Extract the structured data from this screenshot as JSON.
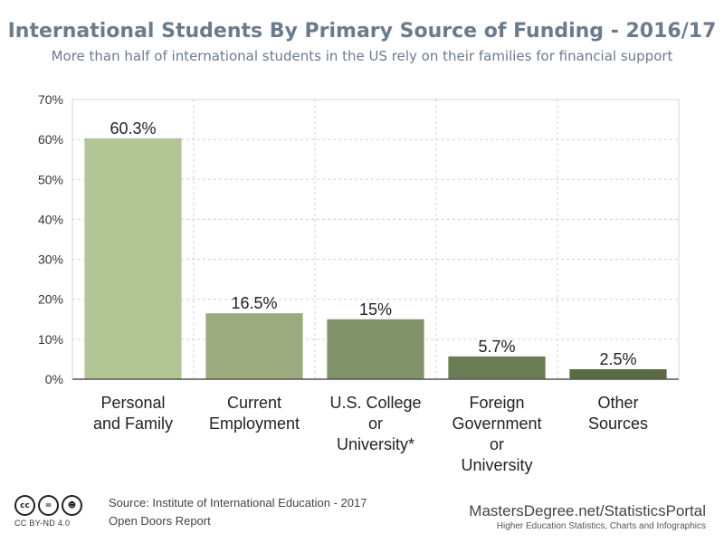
{
  "chart_data": {
    "type": "bar",
    "title": "International Students By Primary Source of Funding - 2016/17",
    "subtitle": "More than half of international students in the US rely on their families for financial support",
    "categories": [
      [
        "Personal",
        "and Family"
      ],
      [
        "Current",
        "Employment"
      ],
      [
        "U.S. College",
        "or",
        "University*"
      ],
      [
        "Foreign",
        "Government",
        "or",
        "University"
      ],
      [
        "Other",
        "Sources"
      ]
    ],
    "values": [
      60.3,
      16.5,
      15,
      5.7,
      2.5
    ],
    "value_labels": [
      "60.3%",
      "16.5%",
      "15%",
      "5.7%",
      "2.5%"
    ],
    "bar_colors": [
      "#b3c495",
      "#9bab7f",
      "#82926a",
      "#6b7b55",
      "#5a6a45"
    ],
    "ylim": [
      0,
      70
    ],
    "yticks": [
      0,
      10,
      20,
      30,
      40,
      50,
      60,
      70
    ],
    "ytick_labels": [
      "0%",
      "10%",
      "20%",
      "30%",
      "40%",
      "50%",
      "60%",
      "70%"
    ],
    "grid": true,
    "xlabel": "",
    "ylabel": ""
  },
  "footer": {
    "license_text": "CC BY-ND 4.0",
    "source_line1": "Source: Institute of International Education - 2017",
    "source_line2": "Open Doors Report",
    "brand_name": "MastersDegree.net/StatisticsPortal",
    "brand_tagline": "Higher Education Statistics, Charts and Infographics"
  }
}
